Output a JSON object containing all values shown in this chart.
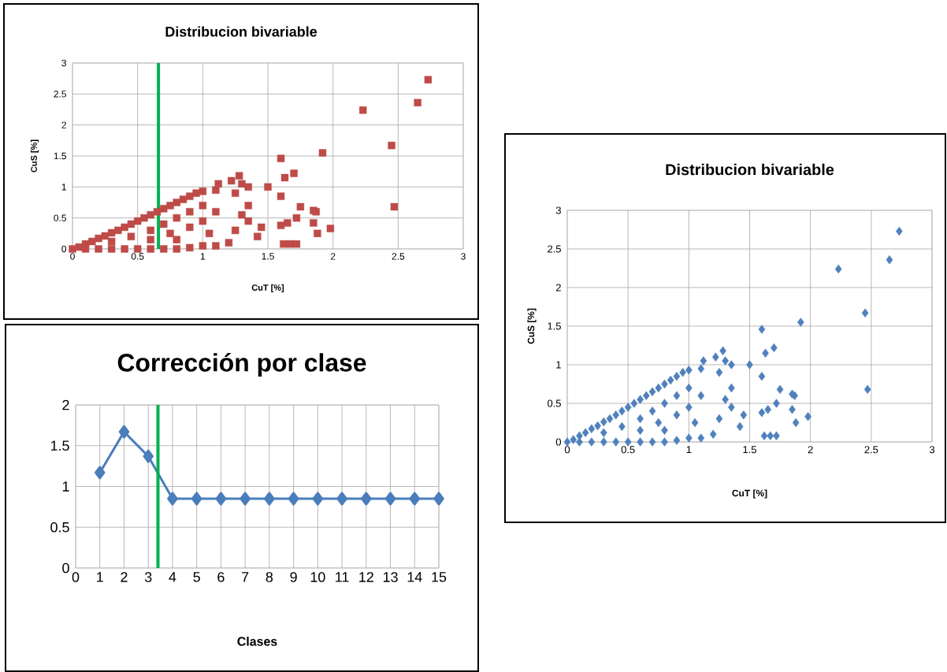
{
  "chart_data": [
    {
      "type": "scatter",
      "title": "Distribucion bivariable",
      "xlabel": "CuT [%]",
      "ylabel": "CuS [%]",
      "marker": "square",
      "grid": true,
      "xlim": [
        0,
        3
      ],
      "ylim": [
        0,
        3
      ],
      "xticks": [
        0,
        0.5,
        1,
        1.5,
        2,
        2.5,
        3
      ],
      "yticks": [
        0,
        0.5,
        1,
        1.5,
        2,
        2.5,
        3
      ],
      "ref_lines": [
        {
          "axis": "x",
          "value": 0.66,
          "color": "#00b050"
        }
      ],
      "series": [
        {
          "color": "#be4b48",
          "x": [
            0,
            0.05,
            0.1,
            0.15,
            0.2,
            0.25,
            0.3,
            0.35,
            0.4,
            0.45,
            0.5,
            0.55,
            0.6,
            0.65,
            0.7,
            0.75,
            0.8,
            0.85,
            0.9,
            0.95,
            1.0,
            0.1,
            0.2,
            0.3,
            0.4,
            0.5,
            0.6,
            0.7,
            0.8,
            0.9,
            1.0,
            1.1,
            1.2,
            0.3,
            0.45,
            0.6,
            0.7,
            0.8,
            0.9,
            0.6,
            0.75,
            0.9,
            1.0,
            1.0,
            0.8,
            1.05,
            1.1,
            1.1,
            1.12,
            1.22,
            1.25,
            1.28,
            1.3,
            1.35,
            1.35,
            1.3,
            1.35,
            1.25,
            1.45,
            1.42,
            1.5,
            1.6,
            1.6,
            1.63,
            1.7,
            1.6,
            1.65,
            1.72,
            1.75,
            1.62,
            1.67,
            1.72,
            1.85,
            1.87,
            1.85,
            1.88,
            1.98,
            1.92,
            2.23,
            2.45,
            2.47,
            2.65,
            2.73
          ],
          "values": [
            0,
            0.03,
            0.08,
            0.12,
            0.17,
            0.21,
            0.26,
            0.3,
            0.35,
            0.4,
            0.45,
            0.5,
            0.55,
            0.6,
            0.65,
            0.7,
            0.75,
            0.8,
            0.85,
            0.9,
            0.93,
            0,
            0,
            0,
            0,
            0,
            0,
            0,
            0,
            0.02,
            0.05,
            0.05,
            0.1,
            0.12,
            0.2,
            0.3,
            0.4,
            0.5,
            0.6,
            0.15,
            0.25,
            0.35,
            0.45,
            0.7,
            0.15,
            0.25,
            0.6,
            0.95,
            1.05,
            1.1,
            0.9,
            1.18,
            1.05,
            1.0,
            0.7,
            0.55,
            0.45,
            0.3,
            0.35,
            0.2,
            1.0,
            1.46,
            0.85,
            1.15,
            1.22,
            0.38,
            0.42,
            0.5,
            0.68,
            0.08,
            0.08,
            0.08,
            0.62,
            0.6,
            0.42,
            0.25,
            0.33,
            1.55,
            2.24,
            1.67,
            0.68,
            2.36,
            2.73
          ]
        }
      ]
    },
    {
      "type": "scatter",
      "title": "Distribucion bivariable",
      "xlabel": "CuT [%]",
      "ylabel": "CuS [%]",
      "marker": "diamond",
      "grid": true,
      "xlim": [
        0,
        3
      ],
      "ylim": [
        0,
        3
      ],
      "xticks": [
        0,
        0.5,
        1,
        1.5,
        2,
        2.5,
        3
      ],
      "yticks": [
        0,
        0.5,
        1,
        1.5,
        2,
        2.5,
        3
      ],
      "series": [
        {
          "color": "#4f81bd",
          "x": [
            0,
            0.05,
            0.1,
            0.15,
            0.2,
            0.25,
            0.3,
            0.35,
            0.4,
            0.45,
            0.5,
            0.55,
            0.6,
            0.65,
            0.7,
            0.75,
            0.8,
            0.85,
            0.9,
            0.95,
            1.0,
            0.1,
            0.2,
            0.3,
            0.4,
            0.5,
            0.6,
            0.7,
            0.8,
            0.9,
            1.0,
            1.1,
            1.2,
            0.3,
            0.45,
            0.6,
            0.7,
            0.8,
            0.9,
            0.6,
            0.75,
            0.9,
            1.0,
            1.0,
            0.8,
            1.05,
            1.1,
            1.1,
            1.12,
            1.22,
            1.25,
            1.28,
            1.3,
            1.35,
            1.35,
            1.3,
            1.35,
            1.25,
            1.45,
            1.42,
            1.5,
            1.6,
            1.6,
            1.63,
            1.7,
            1.6,
            1.65,
            1.72,
            1.75,
            1.62,
            1.67,
            1.72,
            1.85,
            1.87,
            1.85,
            1.88,
            1.98,
            1.92,
            2.23,
            2.45,
            2.47,
            2.65,
            2.73
          ],
          "values": [
            0,
            0.03,
            0.08,
            0.12,
            0.17,
            0.21,
            0.26,
            0.3,
            0.35,
            0.4,
            0.45,
            0.5,
            0.55,
            0.6,
            0.65,
            0.7,
            0.75,
            0.8,
            0.85,
            0.9,
            0.93,
            0,
            0,
            0,
            0,
            0,
            0,
            0,
            0,
            0.02,
            0.05,
            0.05,
            0.1,
            0.12,
            0.2,
            0.3,
            0.4,
            0.5,
            0.6,
            0.15,
            0.25,
            0.35,
            0.45,
            0.7,
            0.15,
            0.25,
            0.6,
            0.95,
            1.05,
            1.1,
            0.9,
            1.18,
            1.05,
            1.0,
            0.7,
            0.55,
            0.45,
            0.3,
            0.35,
            0.2,
            1.0,
            1.46,
            0.85,
            1.15,
            1.22,
            0.38,
            0.42,
            0.5,
            0.68,
            0.08,
            0.08,
            0.08,
            0.62,
            0.6,
            0.42,
            0.25,
            0.33,
            1.55,
            2.24,
            1.67,
            0.68,
            2.36,
            2.73
          ]
        }
      ]
    },
    {
      "type": "line",
      "title": "Corrección por clase",
      "xlabel": "Clases",
      "marker": "diamond",
      "line_style": "solid",
      "grid": true,
      "xlim": [
        0,
        15
      ],
      "ylim": [
        0,
        2
      ],
      "xticks": [
        0,
        1,
        2,
        3,
        4,
        5,
        6,
        7,
        8,
        9,
        10,
        11,
        12,
        13,
        14,
        15
      ],
      "yticks": [
        0,
        0.5,
        1,
        1.5,
        2
      ],
      "ref_lines": [
        {
          "axis": "x",
          "value": 3.4,
          "color": "#00b050"
        }
      ],
      "series": [
        {
          "color": "#4a7ebb",
          "x": [
            1,
            2,
            3,
            4,
            5,
            6,
            7,
            8,
            9,
            10,
            11,
            12,
            13,
            14,
            15
          ],
          "values": [
            1.17,
            1.67,
            1.37,
            0.85,
            0.85,
            0.85,
            0.85,
            0.85,
            0.85,
            0.85,
            0.85,
            0.85,
            0.85,
            0.85,
            0.85
          ]
        }
      ]
    }
  ]
}
